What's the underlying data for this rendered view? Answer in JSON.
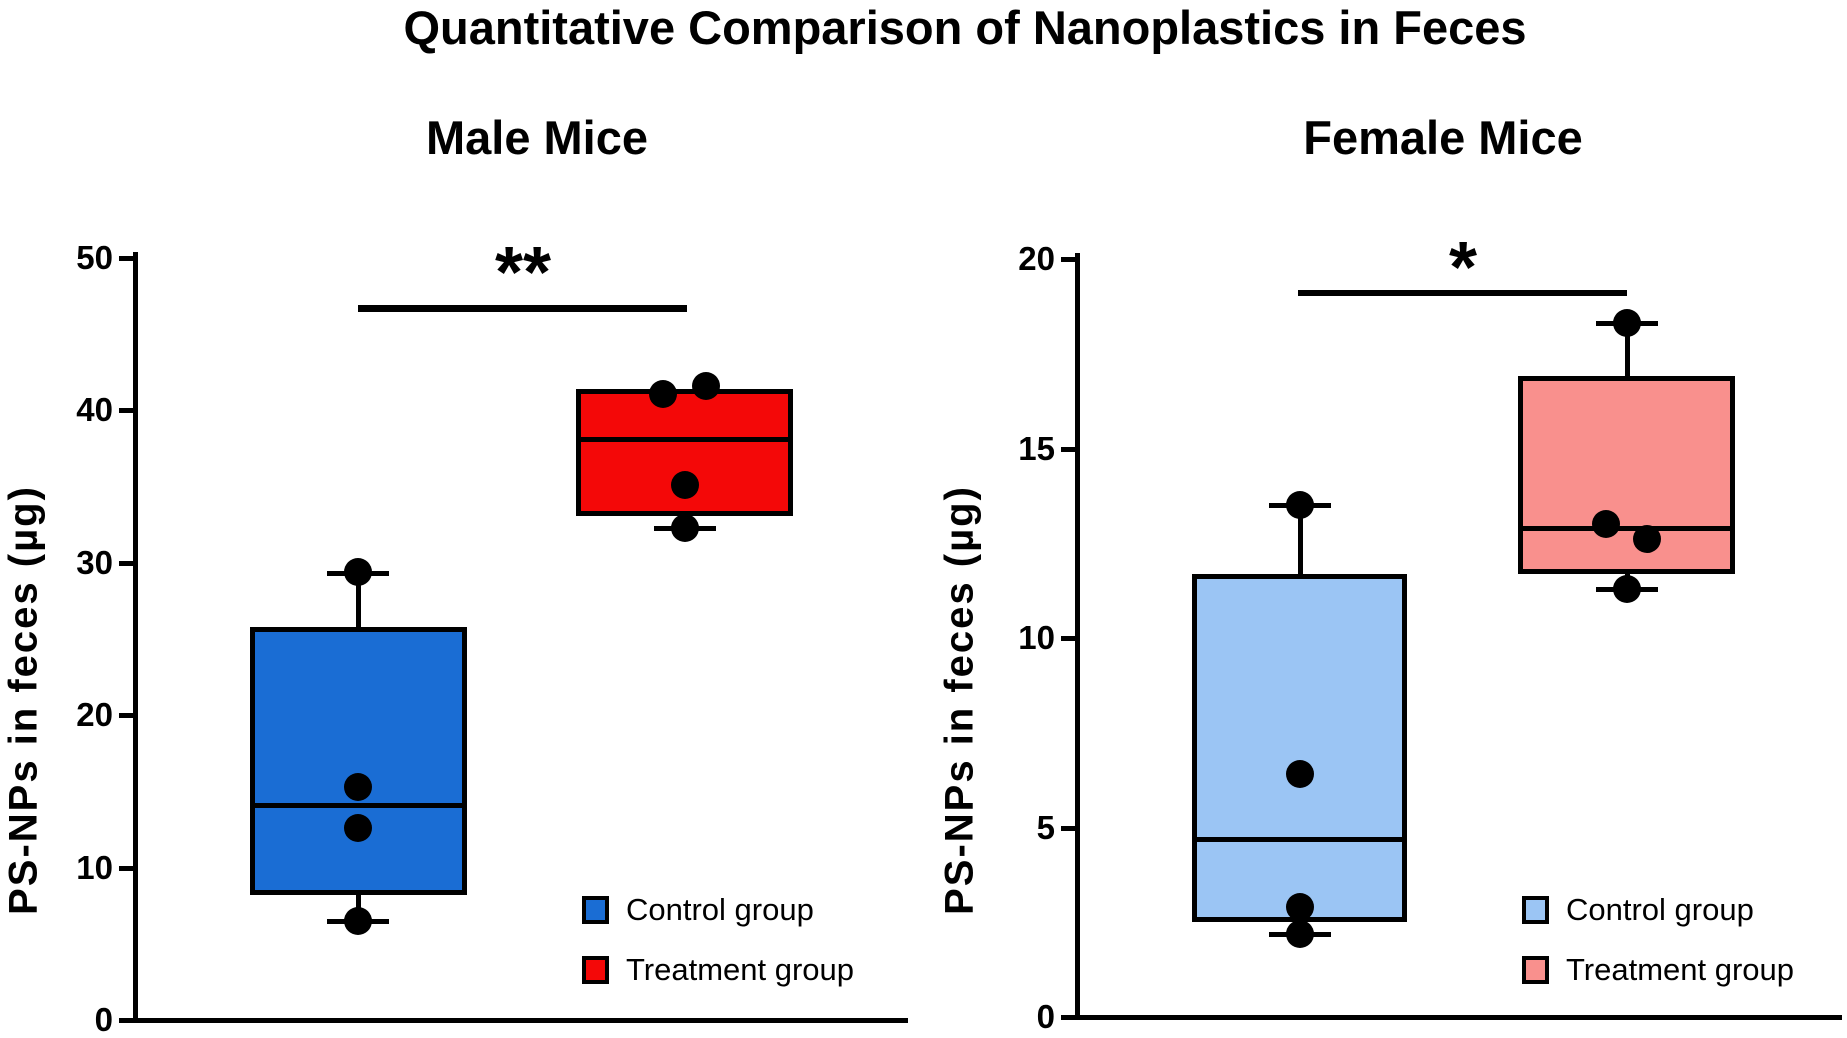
{
  "main_title": "Quantitative Comparison of Nanoplastics in Feces",
  "legend": {
    "control_label": "Control group",
    "treatment_label": "Treatment group"
  },
  "colors": {
    "male_control": "#1A6DD4",
    "male_treatment": "#F40808",
    "female_control": "#9BC5F4",
    "female_treatment": "#F9908D",
    "ink": "#000000",
    "background": "#FFFFFF"
  },
  "chart_data": [
    {
      "type": "box",
      "title": "Male Mice",
      "ylabel": "PS-NPs in feces (µg)",
      "ylim": [
        0,
        50
      ],
      "yticks": [
        0,
        10,
        20,
        30,
        40,
        50
      ],
      "significance": "**",
      "grid": false,
      "legend_position": "bottom-right-inside",
      "groups": [
        {
          "name": "Control group",
          "color": "#1A6DD4",
          "box": {
            "whisker_low": 6.5,
            "q1": 8.2,
            "median": 14.1,
            "q3": 25.8,
            "whisker_high": 29.3
          },
          "points": [
            {
              "v": 29.4,
              "dx": 0
            },
            {
              "v": 15.3,
              "dx": 0
            },
            {
              "v": 12.6,
              "dx": 0
            },
            {
              "v": 6.5,
              "dx": 0
            }
          ]
        },
        {
          "name": "Treatment group",
          "color": "#F40808",
          "box": {
            "whisker_low": 32.3,
            "q1": 33.1,
            "median": 38.1,
            "q3": 41.4,
            "whisker_high": 41.4
          },
          "points": [
            {
              "v": 41.1,
              "dx": -22
            },
            {
              "v": 41.6,
              "dx": 21
            },
            {
              "v": 35.1,
              "dx": 0
            },
            {
              "v": 32.3,
              "dx": 0
            }
          ]
        }
      ]
    },
    {
      "type": "box",
      "title": "Female Mice",
      "ylabel": "PS-NPs in feces (µg)",
      "ylim": [
        0,
        20
      ],
      "yticks": [
        0,
        5,
        10,
        15,
        20
      ],
      "significance": "*",
      "grid": false,
      "legend_position": "bottom-right-inside",
      "groups": [
        {
          "name": "Control group",
          "color": "#9BC5F4",
          "box": {
            "whisker_low": 2.2,
            "q1": 2.5,
            "median": 4.7,
            "q3": 11.7,
            "whisker_high": 13.5
          },
          "points": [
            {
              "v": 13.5,
              "dx": 0
            },
            {
              "v": 6.4,
              "dx": 0
            },
            {
              "v": 2.9,
              "dx": 0
            },
            {
              "v": 2.2,
              "dx": 0
            }
          ]
        },
        {
          "name": "Treatment group",
          "color": "#F9908D",
          "box": {
            "whisker_low": 11.3,
            "q1": 11.7,
            "median": 12.9,
            "q3": 16.9,
            "whisker_high": 18.3
          },
          "points": [
            {
              "v": 18.3,
              "dx": 0
            },
            {
              "v": 13.0,
              "dx": -21
            },
            {
              "v": 12.6,
              "dx": 20
            },
            {
              "v": 11.3,
              "dx": 0
            }
          ]
        }
      ]
    }
  ]
}
